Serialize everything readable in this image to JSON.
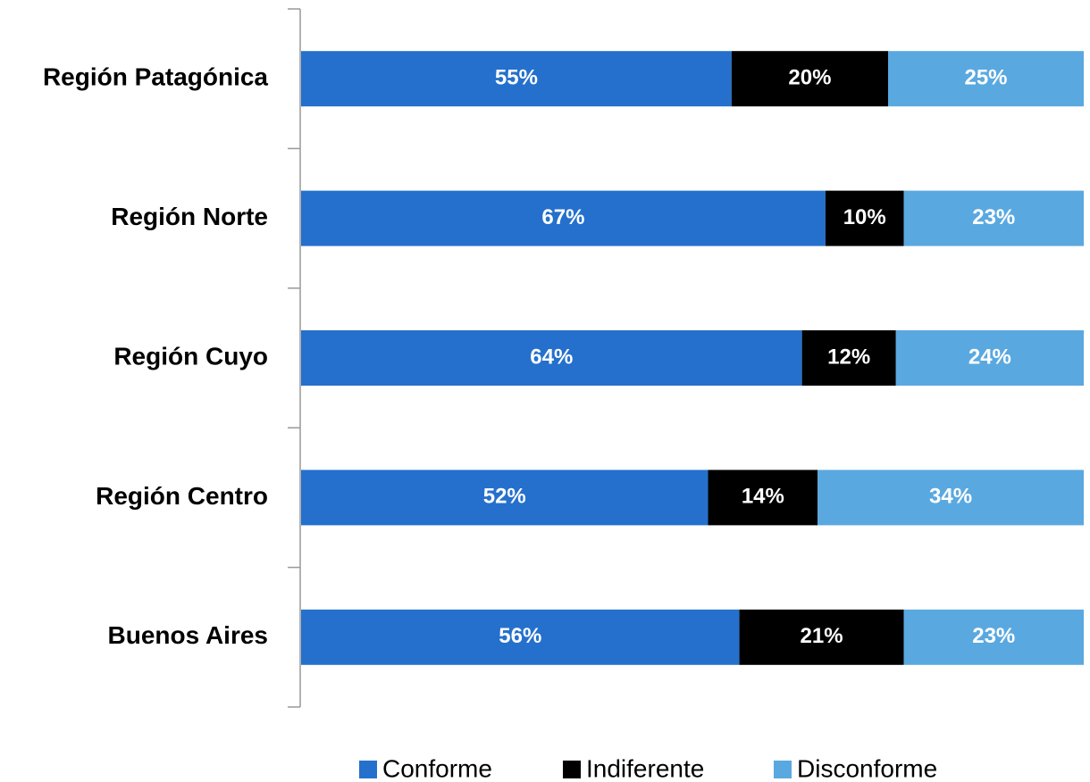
{
  "chart_data": {
    "type": "stacked_bar_horizontal",
    "categories": [
      "Región Patagónica",
      "Región Norte",
      "Región Cuyo",
      "Región Centro",
      "Buenos Aires"
    ],
    "xlim": [
      0,
      100
    ],
    "series": [
      {
        "name": "Conforme",
        "color": "#2470cc",
        "values": [
          55,
          67,
          64,
          52,
          56
        ],
        "value_labels": [
          "55%",
          "67%",
          "64%",
          "52%",
          "56%"
        ]
      },
      {
        "name": "Indiferente",
        "color": "#000000",
        "values": [
          20,
          10,
          12,
          14,
          21
        ],
        "value_labels": [
          "20%",
          "10%",
          "12%",
          "14%",
          "21%"
        ]
      },
      {
        "name": "Disconforme",
        "color": "#5aa8e0",
        "values": [
          25,
          23,
          24,
          34,
          23
        ],
        "value_labels": [
          "25%",
          "23%",
          "24%",
          "34%",
          "23%"
        ]
      }
    ],
    "legend": "bottom"
  }
}
